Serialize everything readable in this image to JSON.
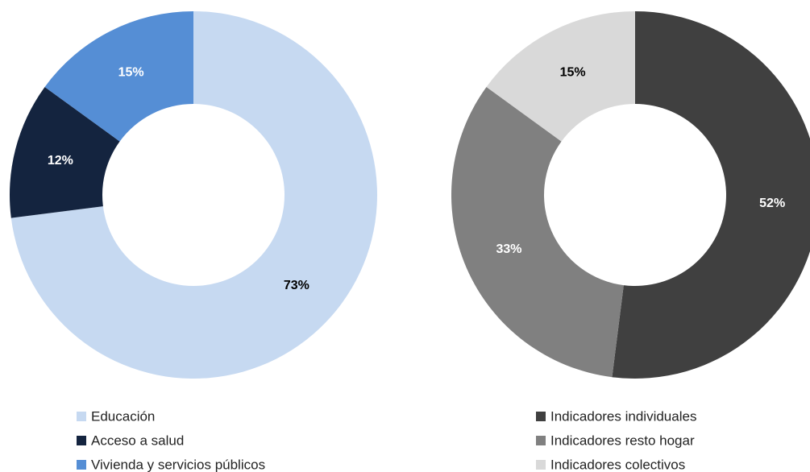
{
  "chart_data": [
    {
      "type": "pie",
      "donut": true,
      "categories": [
        "Educación",
        "Acceso a salud",
        "Vivienda y servicios públicos"
      ],
      "values": [
        73,
        12,
        15
      ],
      "value_labels": [
        "73%",
        "12%",
        "15%"
      ],
      "colors": [
        "#c6d9f1",
        "#14243f",
        "#558ed5"
      ]
    },
    {
      "type": "pie",
      "donut": true,
      "categories": [
        "Indicadores individuales",
        "Indicadores resto hogar",
        "Indicadores colectivos"
      ],
      "values": [
        52,
        33,
        15
      ],
      "value_labels": [
        "52%",
        "33%",
        "15%"
      ],
      "colors": [
        "#404040",
        "#808080",
        "#d9d9d9"
      ]
    }
  ]
}
